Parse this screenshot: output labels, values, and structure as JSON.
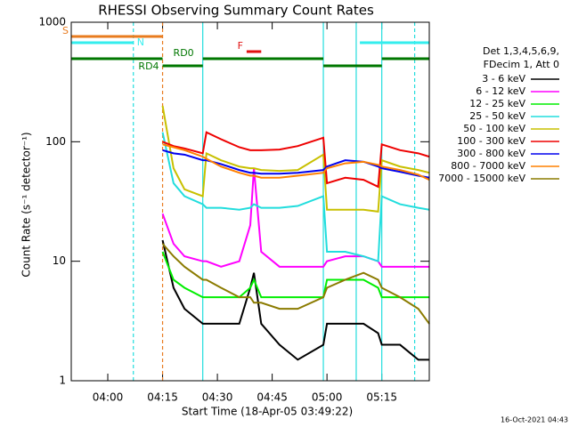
{
  "chart_data": {
    "type": "line",
    "title": "RHESSI Observing Summary Count Rates",
    "xlabel": "Start Time (18-Apr-05 03:49:22)",
    "ylabel": "Count Rate (s⁻¹ detector⁻¹)",
    "legend_header": [
      "Det 1,3,4,5,6,9,",
      "FDecim 1, Att 0"
    ],
    "footer": "16-Oct-2021 04:43",
    "log_y": true,
    "legend": "right",
    "xlim": [
      "03:50",
      "05:28"
    ],
    "xticks": [
      "04:00",
      "04:15",
      "04:30",
      "04:45",
      "05:00",
      "05:15"
    ],
    "ylim": [
      1,
      1000
    ],
    "yticks": [
      1,
      10,
      100,
      1000
    ],
    "x": [
      "04:15",
      "04:18",
      "04:21",
      "04:26",
      "04:27",
      "04:31",
      "04:36",
      "04:39",
      "04:40",
      "04:42",
      "04:47",
      "04:52",
      "04:59",
      "05:00",
      "05:05",
      "05:10",
      "05:14",
      "05:15",
      "05:20",
      "05:25",
      "05:28"
    ],
    "series": [
      {
        "name": "3 - 6 keV",
        "color": "#000000",
        "values": [
          15,
          6,
          4,
          3,
          3,
          3,
          3,
          6,
          8,
          3,
          2,
          1.5,
          2,
          3,
          3,
          3,
          2.5,
          2,
          2,
          1.5,
          1.5
        ]
      },
      {
        "name": "6 - 12 keV",
        "color": "#ff00ff",
        "values": [
          25,
          14,
          11,
          10,
          10,
          9,
          10,
          20,
          60,
          12,
          9,
          9,
          9,
          10,
          11,
          11,
          10,
          9,
          9,
          9,
          9
        ]
      },
      {
        "name": "12 - 25 keV",
        "color": "#00ee00",
        "values": [
          12,
          7,
          6,
          5,
          5,
          5,
          5,
          6,
          7,
          5,
          5,
          5,
          5,
          7,
          7,
          7,
          6,
          5,
          5,
          5,
          5
        ]
      },
      {
        "name": "25 - 50 keV",
        "color": "#22dddd",
        "values": [
          120,
          45,
          35,
          30,
          28,
          28,
          27,
          28,
          30,
          28,
          28,
          29,
          35,
          12,
          12,
          11,
          10,
          35,
          30,
          28,
          27
        ]
      },
      {
        "name": "50 - 100 keV",
        "color": "#c8c000",
        "values": [
          200,
          60,
          40,
          35,
          80,
          70,
          62,
          60,
          60,
          58,
          57,
          58,
          78,
          27,
          27,
          27,
          26,
          70,
          62,
          58,
          55
        ]
      },
      {
        "name": "100 - 300 keV",
        "color": "#ee0000",
        "values": [
          100,
          92,
          88,
          80,
          120,
          105,
          90,
          85,
          85,
          85,
          86,
          92,
          108,
          45,
          50,
          48,
          42,
          95,
          85,
          80,
          75
        ]
      },
      {
        "name": "300 - 800 keV",
        "color": "#0000ee",
        "values": [
          85,
          80,
          78,
          70,
          70,
          65,
          58,
          55,
          55,
          54,
          54,
          55,
          58,
          62,
          70,
          68,
          62,
          60,
          56,
          52,
          50
        ]
      },
      {
        "name": "800 - 7000 keV",
        "color": "#ff8000",
        "values": [
          95,
          90,
          85,
          75,
          72,
          62,
          55,
          52,
          52,
          50,
          50,
          52,
          55,
          60,
          66,
          68,
          64,
          62,
          58,
          53,
          48
        ]
      },
      {
        "name": "7000 - 15000 keV",
        "color": "#8b7b00",
        "values": [
          14,
          11,
          9,
          7,
          7,
          6,
          5,
          5,
          4.5,
          4.5,
          4,
          4,
          5,
          6,
          7,
          8,
          7,
          6,
          5,
          4,
          3
        ]
      }
    ],
    "markers": [
      {
        "x": "04:07",
        "color": "#22dddd",
        "dashed": true
      },
      {
        "x": "04:15",
        "color": "#e87b1e",
        "dashed": true
      },
      {
        "x": "05:24",
        "color": "#22dddd",
        "dashed": true
      },
      {
        "x": "04:26",
        "color": "#22dddd",
        "dashed": false
      },
      {
        "x": "04:59",
        "color": "#22dddd",
        "dashed": false
      },
      {
        "x": "05:08",
        "color": "#22dddd",
        "dashed": false
      },
      {
        "x": "05:15",
        "color": "#22dddd",
        "dashed": false
      }
    ],
    "flags": [
      {
        "label": "S",
        "color": "#e87b1e",
        "intervals": [
          [
            "03:50",
            "04:15"
          ]
        ]
      },
      {
        "label": "N",
        "color": "#33eeee",
        "intervals": [
          [
            "03:50",
            "04:07"
          ],
          [
            "05:09",
            "05:28"
          ]
        ]
      },
      {
        "label": "F",
        "color": "#e01010",
        "intervals": [
          [
            "04:38",
            "04:42"
          ]
        ]
      },
      {
        "label": "RD0",
        "color": "#007700",
        "intervals": [
          [
            "03:50",
            "04:15"
          ],
          [
            "04:26",
            "04:59"
          ],
          [
            "05:15",
            "05:28"
          ]
        ]
      },
      {
        "label": "RD4",
        "color": "#007700",
        "intervals": [
          [
            "04:15",
            "04:26"
          ],
          [
            "04:59",
            "05:15"
          ]
        ]
      }
    ]
  }
}
